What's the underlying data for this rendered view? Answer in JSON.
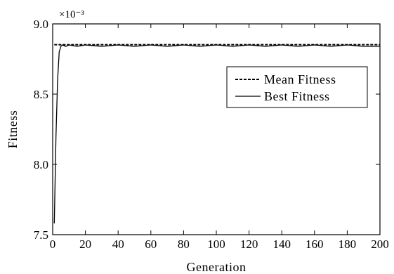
{
  "chart_data": {
    "type": "line",
    "xlabel": "Generation",
    "ylabel": "Fitness",
    "axis_multiplier": "×10⁻³",
    "xlim": [
      0,
      200
    ],
    "ylim": [
      7.5,
      9.0
    ],
    "x_ticks": [
      0,
      20,
      40,
      60,
      80,
      100,
      120,
      140,
      160,
      180,
      200
    ],
    "y_ticks": [
      7.5,
      8.0,
      8.5,
      9.0
    ],
    "y_tick_labels": [
      "7.5",
      "8.0",
      "8.5",
      "9.0"
    ],
    "grid": false,
    "legend_position": "top-right",
    "series": [
      {
        "name": "Mean Fitness",
        "style": "dashed",
        "x": [
          1,
          2,
          3,
          4,
          5,
          10,
          20,
          40,
          60,
          80,
          100,
          120,
          140,
          160,
          180,
          200
        ],
        "y": [
          8.852,
          8.852,
          8.852,
          8.852,
          8.852,
          8.852,
          8.852,
          8.852,
          8.852,
          8.852,
          8.852,
          8.852,
          8.852,
          8.852,
          8.852,
          8.852
        ]
      },
      {
        "name": "Best Fitness",
        "style": "solid",
        "x": [
          1,
          2,
          3,
          4,
          5,
          6,
          8,
          10,
          15,
          20,
          30,
          40,
          50,
          60,
          70,
          80,
          90,
          100,
          110,
          120,
          130,
          140,
          150,
          160,
          170,
          180,
          190,
          200
        ],
        "y": [
          7.58,
          8.2,
          8.6,
          8.8,
          8.84,
          8.85,
          8.84,
          8.85,
          8.84,
          8.85,
          8.84,
          8.85,
          8.84,
          8.85,
          8.84,
          8.85,
          8.84,
          8.85,
          8.84,
          8.85,
          8.84,
          8.85,
          8.84,
          8.85,
          8.84,
          8.85,
          8.84,
          8.84
        ]
      }
    ]
  }
}
